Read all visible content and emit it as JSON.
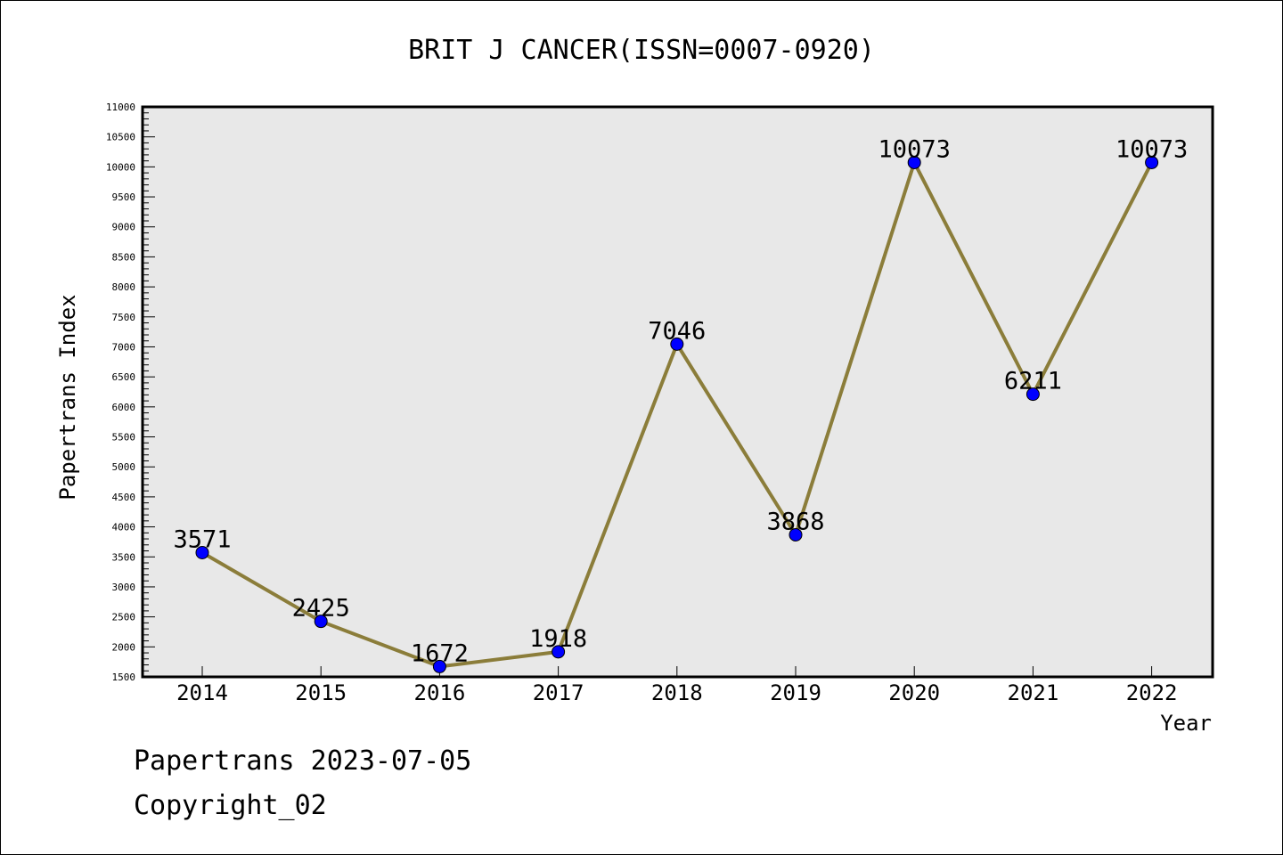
{
  "chart_data": {
    "type": "line",
    "title": "BRIT J CANCER(ISSN=0007-0920)",
    "xlabel": "Year",
    "ylabel": "Papertrans Index",
    "categories": [
      "2014",
      "2015",
      "2016",
      "2017",
      "2018",
      "2019",
      "2020",
      "2021",
      "2022"
    ],
    "series": [
      {
        "values": [
          3571,
          2425,
          1672,
          1918,
          7046,
          3868,
          10073,
          6211,
          10073
        ],
        "data_labels": [
          "3571",
          "2425",
          "1672",
          "1918",
          "7046",
          "3868",
          "10073",
          "6211",
          "10073"
        ],
        "line_color": "#8b7d3a",
        "marker_color": "#0000ff"
      }
    ],
    "ylim": [
      1500,
      11000
    ],
    "y_ticks": [
      "1500",
      "2000",
      "2500",
      "3000",
      "3500",
      "4000",
      "4500",
      "5000",
      "5500",
      "6000",
      "6500",
      "7000",
      "7500",
      "8000",
      "8500",
      "9000",
      "9500",
      "10000",
      "10500",
      "11000"
    ],
    "grid": false,
    "plot_background": "#e8e8e8"
  },
  "footer": {
    "line1": "Papertrans 2023-07-05",
    "line2": "Copyright_02"
  }
}
